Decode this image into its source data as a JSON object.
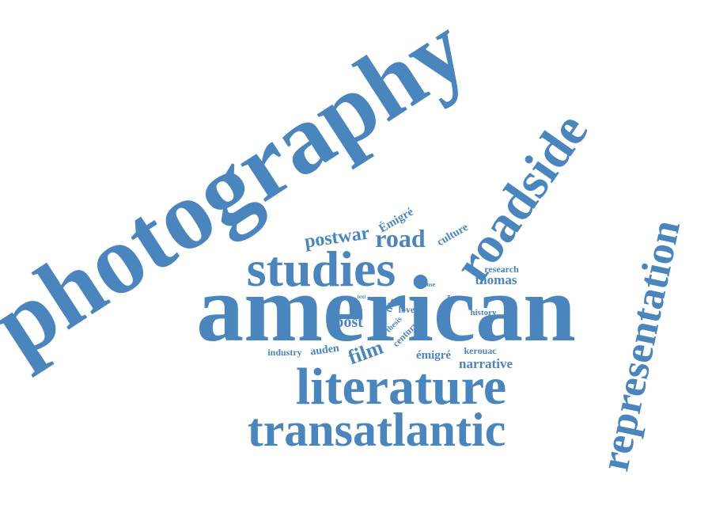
{
  "colors": {
    "word": "#4a86bd",
    "background": "#ffffff"
  },
  "words": [
    {
      "id": "photography",
      "text": "photography"
    },
    {
      "id": "american",
      "text": "american"
    },
    {
      "id": "roadside",
      "text": "roadside"
    },
    {
      "id": "representation",
      "text": "representation"
    },
    {
      "id": "studies",
      "text": "studies"
    },
    {
      "id": "literature",
      "text": "literature"
    },
    {
      "id": "transatlantic",
      "text": "transatlantic"
    },
    {
      "id": "postwar",
      "text": "postwar"
    },
    {
      "id": "road",
      "text": "road"
    },
    {
      "id": "emigre-capital",
      "text": "Émigré"
    },
    {
      "id": "culture",
      "text": "culture"
    },
    {
      "id": "research",
      "text": "research"
    },
    {
      "id": "thomas",
      "text": "thomas"
    },
    {
      "id": "close",
      "text": "close"
    },
    {
      "id": "text",
      "text": "text"
    },
    {
      "id": "trip",
      "text": "trip"
    },
    {
      "id": "love",
      "text": "love"
    },
    {
      "id": "service",
      "text": "service"
    },
    {
      "id": "history",
      "text": "history"
    },
    {
      "id": "post",
      "text": "post"
    },
    {
      "id": "thesis",
      "text": "thesis"
    },
    {
      "id": "century",
      "text": "century"
    },
    {
      "id": "industry",
      "text": "industry"
    },
    {
      "id": "auden",
      "text": "auden"
    },
    {
      "id": "film",
      "text": "film"
    },
    {
      "id": "emigre",
      "text": "émigré"
    },
    {
      "id": "kerouac",
      "text": "kerouac"
    },
    {
      "id": "narrative",
      "text": "narrative"
    }
  ]
}
